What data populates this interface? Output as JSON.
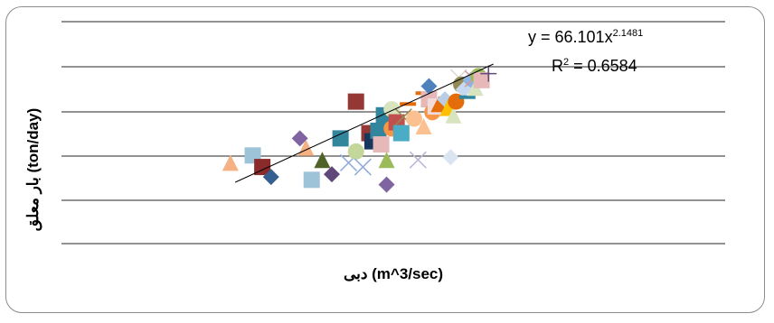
{
  "chart_data": {
    "type": "scatter",
    "xlabel": "دبی (m^3/sec)",
    "ylabel": "بار معلق (ton/day)",
    "grid": true,
    "trendline": {
      "type": "power",
      "equation_prefix": "y = 66.101x",
      "equation_exponent": "2.1481",
      "r2_prefix": "R",
      "r2_exponent": "2",
      "r2_value": " = 0.6584"
    },
    "points": [
      {
        "x": 0.08,
        "y": 0.42,
        "m": "triangle",
        "c": "#f4b183"
      },
      {
        "x": 0.1,
        "y": 0.5,
        "m": "square",
        "c": "#9dc3d9"
      },
      {
        "x": 0.11,
        "y": 0.38,
        "m": "square",
        "c": "#8b2a2a"
      },
      {
        "x": 0.12,
        "y": 0.3,
        "m": "diamond",
        "c": "#365f91"
      },
      {
        "x": 0.16,
        "y": 0.75,
        "m": "diamond",
        "c": "#8064a2"
      },
      {
        "x": 0.17,
        "y": 0.6,
        "m": "triangle",
        "c": "#f4b183"
      },
      {
        "x": 0.18,
        "y": 0.28,
        "m": "square",
        "c": "#9dc3d9"
      },
      {
        "x": 0.2,
        "y": 0.45,
        "m": "triangle",
        "c": "#4f6228"
      },
      {
        "x": 0.22,
        "y": 0.32,
        "m": "diamond",
        "c": "#60497a"
      },
      {
        "x": 0.24,
        "y": 0.75,
        "m": "square",
        "c": "#31859c"
      },
      {
        "x": 0.26,
        "y": 0.42,
        "m": "cross",
        "c": "#8faadc"
      },
      {
        "x": 0.28,
        "y": 1.8,
        "m": "square",
        "c": "#953735"
      },
      {
        "x": 0.28,
        "y": 0.55,
        "m": "circle",
        "c": "#c4d79b"
      },
      {
        "x": 0.3,
        "y": 0.38,
        "m": "cross",
        "c": "#8faadc"
      },
      {
        "x": 0.32,
        "y": 0.85,
        "m": "square",
        "c": "#953735"
      },
      {
        "x": 0.33,
        "y": 0.7,
        "m": "square",
        "c": "#17375e"
      },
      {
        "x": 0.35,
        "y": 0.9,
        "m": "square",
        "c": "#31859c"
      },
      {
        "x": 0.36,
        "y": 0.65,
        "m": "square",
        "c": "#e6b9b8"
      },
      {
        "x": 0.37,
        "y": 1.3,
        "m": "square",
        "c": "#31859c"
      },
      {
        "x": 0.38,
        "y": 0.45,
        "m": "triangle",
        "c": "#9bbb59"
      },
      {
        "x": 0.38,
        "y": 0.25,
        "m": "diamond",
        "c": "#8064a2"
      },
      {
        "x": 0.4,
        "y": 1.5,
        "m": "circle",
        "c": "#d7e4bd"
      },
      {
        "x": 0.4,
        "y": 0.95,
        "m": "circle",
        "c": "#f79646"
      },
      {
        "x": 0.42,
        "y": 1.1,
        "m": "square",
        "c": "#c0504d"
      },
      {
        "x": 0.44,
        "y": 0.85,
        "m": "square",
        "c": "#4bacc6"
      },
      {
        "x": 0.45,
        "y": 1.25,
        "m": "cross",
        "c": "#948a54"
      },
      {
        "x": 0.47,
        "y": 1.7,
        "m": "dash",
        "c": "#e46c0a"
      },
      {
        "x": 0.5,
        "y": 1.2,
        "m": "circle",
        "c": "#fac090"
      },
      {
        "x": 0.52,
        "y": 0.45,
        "m": "cross",
        "c": "#b7b7d7"
      },
      {
        "x": 0.55,
        "y": 2.2,
        "m": "dash",
        "c": "#e46c0a"
      },
      {
        "x": 0.55,
        "y": 1.0,
        "m": "triangle",
        "c": "#fac090"
      },
      {
        "x": 0.58,
        "y": 1.9,
        "m": "square",
        "c": "#e6b9b8"
      },
      {
        "x": 0.58,
        "y": 2.6,
        "m": "diamond",
        "c": "#4f81bd"
      },
      {
        "x": 0.6,
        "y": 1.4,
        "m": "circle",
        "c": "#f79646"
      },
      {
        "x": 0.62,
        "y": 1.6,
        "m": "square",
        "c": "#f2dcdb"
      },
      {
        "x": 0.64,
        "y": 1.7,
        "m": "triangle",
        "c": "#e46c0a"
      },
      {
        "x": 0.68,
        "y": 1.9,
        "m": "diamond",
        "c": "#b9cde5"
      },
      {
        "x": 0.7,
        "y": 1.55,
        "m": "triangle",
        "c": "#ffc000"
      },
      {
        "x": 0.72,
        "y": 0.48,
        "m": "diamond",
        "c": "#dbe5f1"
      },
      {
        "x": 0.74,
        "y": 1.3,
        "m": "triangle",
        "c": "#d7e4bd"
      },
      {
        "x": 0.76,
        "y": 1.8,
        "m": "circle",
        "c": "#e46c0a"
      },
      {
        "x": 0.78,
        "y": 3.2,
        "m": "cross",
        "c": "#d9d9d9"
      },
      {
        "x": 0.8,
        "y": 2.7,
        "m": "circle",
        "c": "#948a54"
      },
      {
        "x": 0.82,
        "y": 2.4,
        "m": "diamond",
        "c": "#c6d9f1"
      },
      {
        "x": 0.85,
        "y": 2.0,
        "m": "dash",
        "c": "#31859c"
      },
      {
        "x": 0.88,
        "y": 3.0,
        "m": "diamond",
        "c": "#8eb4e3"
      },
      {
        "x": 0.9,
        "y": 3.1,
        "m": "cross",
        "c": "#d99694"
      },
      {
        "x": 0.92,
        "y": 2.5,
        "m": "triangle",
        "c": "#d7e4bd"
      },
      {
        "x": 0.95,
        "y": 3.3,
        "m": "circle",
        "c": "#9bbb59"
      },
      {
        "x": 0.98,
        "y": 3.0,
        "m": "square",
        "c": "#e6b9b8"
      },
      {
        "x": 1.05,
        "y": 3.5,
        "m": "plus",
        "c": "#604a7b"
      }
    ]
  }
}
